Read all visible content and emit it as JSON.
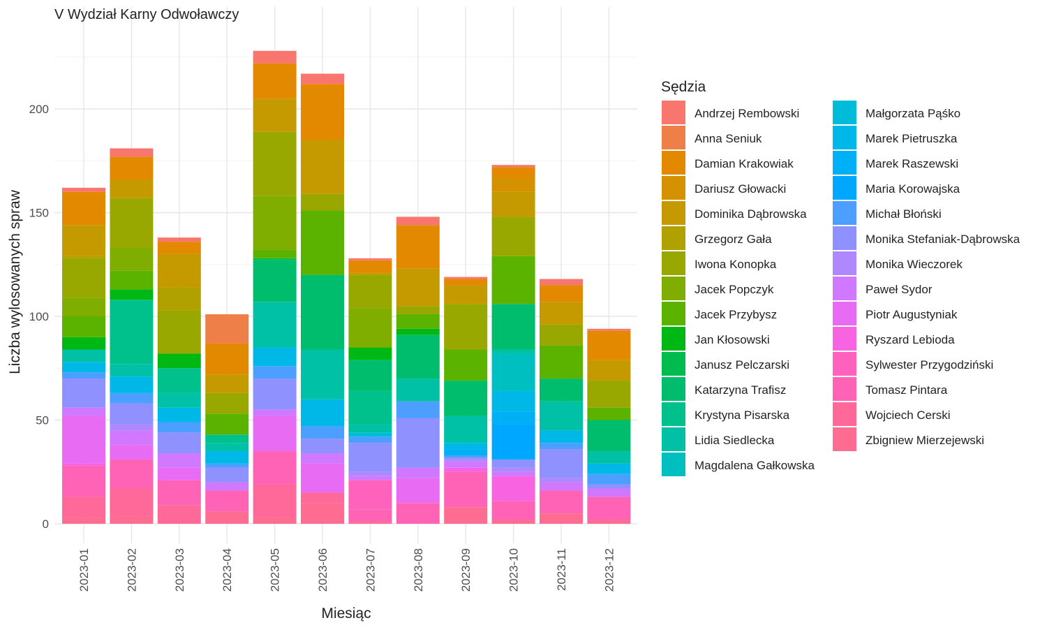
{
  "chart_data": {
    "type": "bar",
    "stacked": true,
    "title": "V Wydział Karny Odwoławczy",
    "xlabel": "Miesiąc",
    "ylabel": "Liczba wylosowanych spraw",
    "ylim": [
      0,
      248
    ],
    "yticks": [
      0,
      50,
      100,
      150,
      200
    ],
    "grid": true,
    "legend_title": "Sędzia",
    "legend_position": "right",
    "categories": [
      "2023-01",
      "2023-02",
      "2023-03",
      "2023-04",
      "2023-05",
      "2023-06",
      "2023-07",
      "2023-08",
      "2023-09",
      "2023-10",
      "2023-11",
      "2023-12"
    ],
    "series": [
      {
        "name": "Andrzej Rembowski",
        "color": "#F8766D",
        "values": [
          2,
          4,
          2,
          0,
          6,
          5,
          1,
          4,
          1,
          1,
          3,
          1
        ]
      },
      {
        "name": "Anna Seniuk",
        "color": "#EF7F49",
        "values": [
          0,
          0,
          0,
          14,
          0,
          0,
          0,
          0,
          0,
          0,
          0,
          0
        ]
      },
      {
        "name": "Damian Krakowiak",
        "color": "#E38900",
        "values": [
          16,
          11,
          6,
          15,
          17,
          27,
          6,
          21,
          3,
          5,
          8,
          14
        ]
      },
      {
        "name": "Dariusz Głowacki",
        "color": "#D59100",
        "values": [
          0,
          0,
          0,
          0,
          0,
          0,
          0,
          0,
          0,
          7,
          0,
          0
        ]
      },
      {
        "name": "Dominika Dąbrowska",
        "color": "#C49A00",
        "values": [
          15,
          9,
          16,
          9,
          16,
          26,
          1,
          18,
          9,
          12,
          11,
          10
        ]
      },
      {
        "name": "Grzegorz Gała",
        "color": "#B0A100",
        "values": [
          1,
          0,
          11,
          0,
          0,
          0,
          0,
          0,
          0,
          0,
          0,
          0
        ]
      },
      {
        "name": "Iwona Konopka",
        "color": "#99A800",
        "values": [
          19,
          24,
          21,
          10,
          31,
          8,
          16,
          4,
          22,
          19,
          10,
          13
        ]
      },
      {
        "name": "Jacek Popczyk",
        "color": "#7FAE00",
        "values": [
          9,
          11,
          0,
          0,
          26,
          0,
          19,
          0,
          0,
          0,
          0,
          0
        ]
      },
      {
        "name": "Jacek Przybysz",
        "color": "#5BB300",
        "values": [
          10,
          9,
          0,
          10,
          4,
          31,
          0,
          7,
          15,
          23,
          16,
          6
        ]
      },
      {
        "name": "Jan Kłosowski",
        "color": "#00B813",
        "values": [
          6,
          5,
          7,
          0,
          0,
          0,
          6,
          3,
          0,
          0,
          0,
          0
        ]
      },
      {
        "name": "Janusz Pelczarski",
        "color": "#00BB4E",
        "values": [
          0,
          0,
          0,
          0,
          1,
          0,
          0,
          0,
          0,
          0,
          0,
          0
        ]
      },
      {
        "name": "Katarzyna Trafisz",
        "color": "#00BD6E",
        "values": [
          0,
          0,
          0,
          0,
          20,
          36,
          15,
          21,
          17,
          22,
          11,
          15
        ]
      },
      {
        "name": "Krystyna Pisarska",
        "color": "#00C08B",
        "values": [
          0,
          31,
          12,
          4,
          0,
          0,
          16,
          0,
          0,
          0,
          0,
          0
        ]
      },
      {
        "name": "Lidia Siedlecka",
        "color": "#00C0A6",
        "values": [
          6,
          6,
          7,
          4,
          22,
          24,
          4,
          11,
          13,
          2,
          14,
          6
        ]
      },
      {
        "name": "Magdalena Gałkowska",
        "color": "#00BFC0",
        "values": [
          0,
          0,
          0,
          0,
          0,
          0,
          0,
          0,
          0,
          18,
          0,
          0
        ]
      },
      {
        "name": "Małgorzata Pąśko",
        "color": "#00BCD8",
        "values": [
          0,
          0,
          0,
          0,
          0,
          0,
          2,
          0,
          0,
          0,
          0,
          0
        ]
      },
      {
        "name": "Marek Pietruszka",
        "color": "#00B8E7",
        "values": [
          5,
          8,
          7,
          6,
          9,
          13,
          0,
          0,
          3,
          10,
          6,
          5
        ]
      },
      {
        "name": "Marek Raszewski",
        "color": "#00B0F6",
        "values": [
          0,
          0,
          0,
          0,
          0,
          0,
          0,
          0,
          3,
          6,
          0,
          0
        ]
      },
      {
        "name": "Maria Korowajska",
        "color": "#00A7FF",
        "values": [
          0,
          0,
          0,
          0,
          0,
          0,
          0,
          0,
          0,
          17,
          0,
          0
        ]
      },
      {
        "name": "Michał Błoński",
        "color": "#4C9EFF",
        "values": [
          3,
          5,
          5,
          2,
          6,
          6,
          3,
          8,
          1,
          0,
          3,
          5
        ]
      },
      {
        "name": "Monika Stefaniak-Dąbrowska",
        "color": "#8F91FF",
        "values": [
          14,
          10,
          10,
          7,
          15,
          7,
          14,
          24,
          1,
          4,
          14,
          2
        ]
      },
      {
        "name": "Monika Wieczorek",
        "color": "#AF88FF",
        "values": [
          0,
          3,
          0,
          0,
          0,
          0,
          2,
          0,
          1,
          2,
          2,
          0
        ]
      },
      {
        "name": "Paweł Sydor",
        "color": "#D078FF",
        "values": [
          4,
          7,
          7,
          4,
          3,
          5,
          2,
          5,
          3,
          2,
          4,
          4
        ]
      },
      {
        "name": "Piotr Augustyniak",
        "color": "#E76BF3",
        "values": [
          23,
          7,
          6,
          0,
          17,
          14,
          0,
          12,
          0,
          0,
          0,
          0
        ]
      },
      {
        "name": "Ryszard Lebioda",
        "color": "#F763E0",
        "values": [
          1,
          0,
          0,
          0,
          0,
          0,
          0,
          0,
          2,
          12,
          0,
          0
        ]
      },
      {
        "name": "Sylwester Przygodziński",
        "color": "#FF62BC",
        "values": [
          0,
          0,
          0,
          0,
          0,
          0,
          14,
          0,
          0,
          0,
          0,
          0
        ]
      },
      {
        "name": "Tomasz Pintara",
        "color": "#FF63B6",
        "values": [
          15,
          14,
          12,
          10,
          16,
          0,
          6,
          10,
          17,
          9,
          11,
          11
        ]
      },
      {
        "name": "Wojciech Cerski",
        "color": "#FF6999",
        "values": [
          10,
          13,
          9,
          0,
          16,
          5,
          0,
          0,
          0,
          0,
          0,
          0
        ]
      },
      {
        "name": "Zbigniew Mierzejewski",
        "color": "#FF6C91",
        "values": [
          3,
          4,
          0,
          6,
          3,
          10,
          1,
          0,
          8,
          2,
          5,
          2
        ]
      }
    ]
  }
}
